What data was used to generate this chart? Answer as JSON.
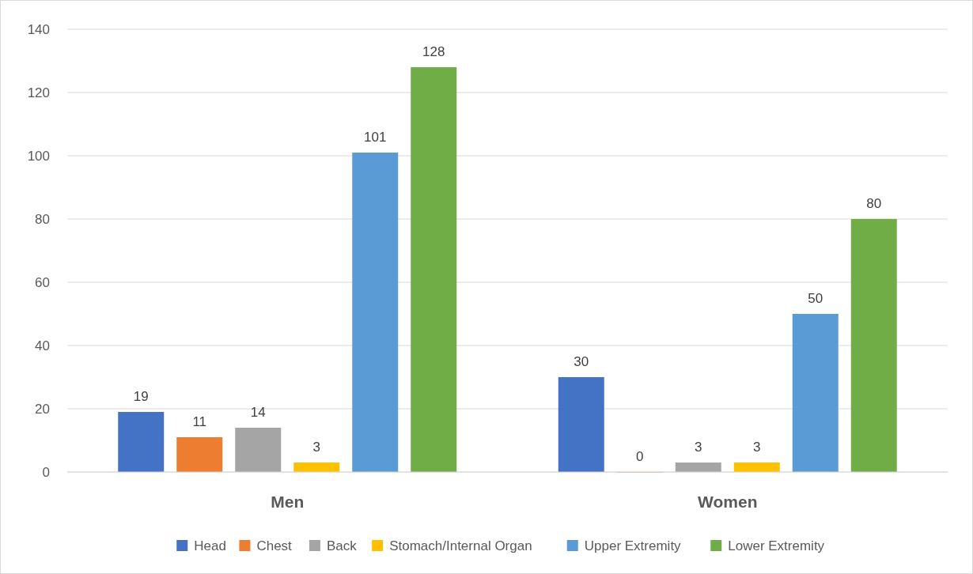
{
  "chart_data": {
    "type": "bar",
    "categories": [
      "Men",
      "Women"
    ],
    "series": [
      {
        "name": "Head",
        "color": "#4472c4",
        "values": [
          19,
          30
        ]
      },
      {
        "name": "Chest",
        "color": "#ed7d31",
        "values": [
          11,
          0
        ]
      },
      {
        "name": "Back",
        "color": "#a5a5a5",
        "values": [
          14,
          3
        ]
      },
      {
        "name": "Stomach/Internal Organ",
        "color": "#ffc000",
        "values": [
          3,
          3
        ]
      },
      {
        "name": "Upper Extremity",
        "color": "#5b9bd5",
        "values": [
          101,
          50
        ]
      },
      {
        "name": "Lower Extremity",
        "color": "#70ad47",
        "values": [
          128,
          80
        ]
      }
    ],
    "ylim": [
      0,
      140
    ],
    "yticks": [
      0,
      20,
      40,
      60,
      80,
      100,
      120,
      140
    ],
    "grid": "y",
    "legend": "bottom",
    "data_labels": true
  }
}
